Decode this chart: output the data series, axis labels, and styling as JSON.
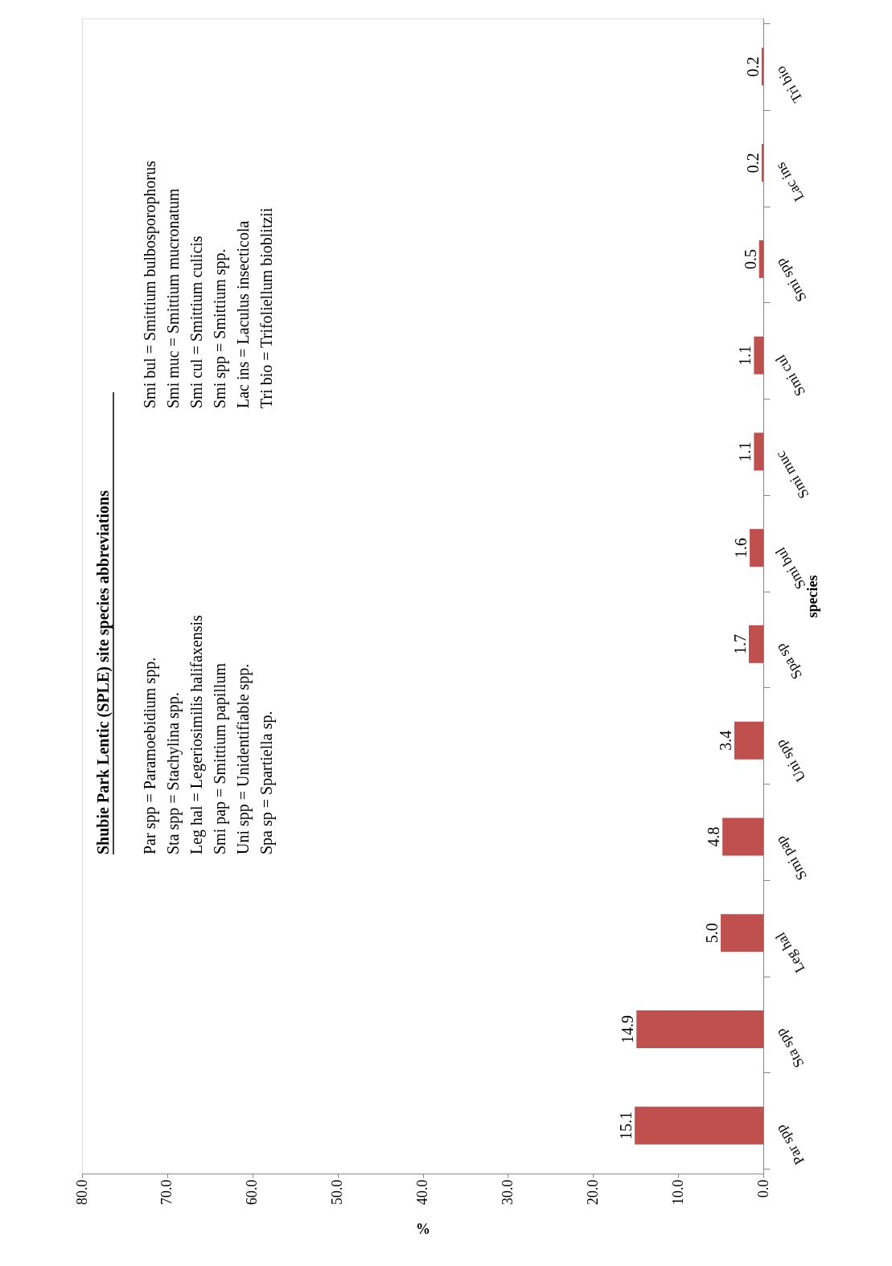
{
  "chart_data": {
    "type": "bar",
    "orientation": "horizontal",
    "categories": [
      "Tri bio",
      "Lac ins",
      "Smi spp",
      "Smi cul",
      "Smi muc",
      "Smi bul",
      "Spa sp",
      "Uni spp",
      "Smi pap",
      "Leg hal",
      "Sta spp",
      "Par spp"
    ],
    "values": [
      0.2,
      0.2,
      0.5,
      1.1,
      1.1,
      1.6,
      1.7,
      3.4,
      4.8,
      5.0,
      14.9,
      15.1
    ],
    "value_labels": [
      "0.2",
      "0.2",
      "0.5",
      "1.1",
      "1.1",
      "1.6",
      "1.7",
      "3.4",
      "4.8",
      "5.0",
      "14.9",
      "15.1"
    ],
    "color": "#c0504d",
    "xlim": [
      80,
      0
    ],
    "xticks": [
      {
        "value": 80,
        "label": "80.0"
      },
      {
        "value": 70,
        "label": "70.0"
      },
      {
        "value": 60,
        "label": "60.0"
      },
      {
        "value": 50,
        "label": "50.0"
      },
      {
        "value": 40,
        "label": "40.0"
      },
      {
        "value": 30,
        "label": "30.0"
      },
      {
        "value": 20,
        "label": "20.0"
      },
      {
        "value": 10,
        "label": "10.0"
      },
      {
        "value": 0,
        "label": "0.0"
      }
    ],
    "xlabel": "%",
    "ylabel": "species",
    "grid": false,
    "legend": false,
    "annotations": [
      "Shubie  Park Lentic (SPLE) site species abbreviations",
      "Par spp = Paramoebidium spp.",
      "Sta spp = Stachylina spp.",
      "Leg hal = Legeriosimilis halifaxensis",
      "Smi pap = Smittium papillum",
      "Uni spp = Unidentifiable spp.",
      "Spa sp = Spartiella sp.",
      "Smi bul = Smittium bulbosporophorus",
      "Smi muc = Smittium mucronatum",
      "Smi cul = Smittium culicis",
      "Smi spp = Smittium spp.",
      "Lac ins = Laculus insecticola",
      "Tri bio = Trifoliellum bioblitzii"
    ]
  }
}
